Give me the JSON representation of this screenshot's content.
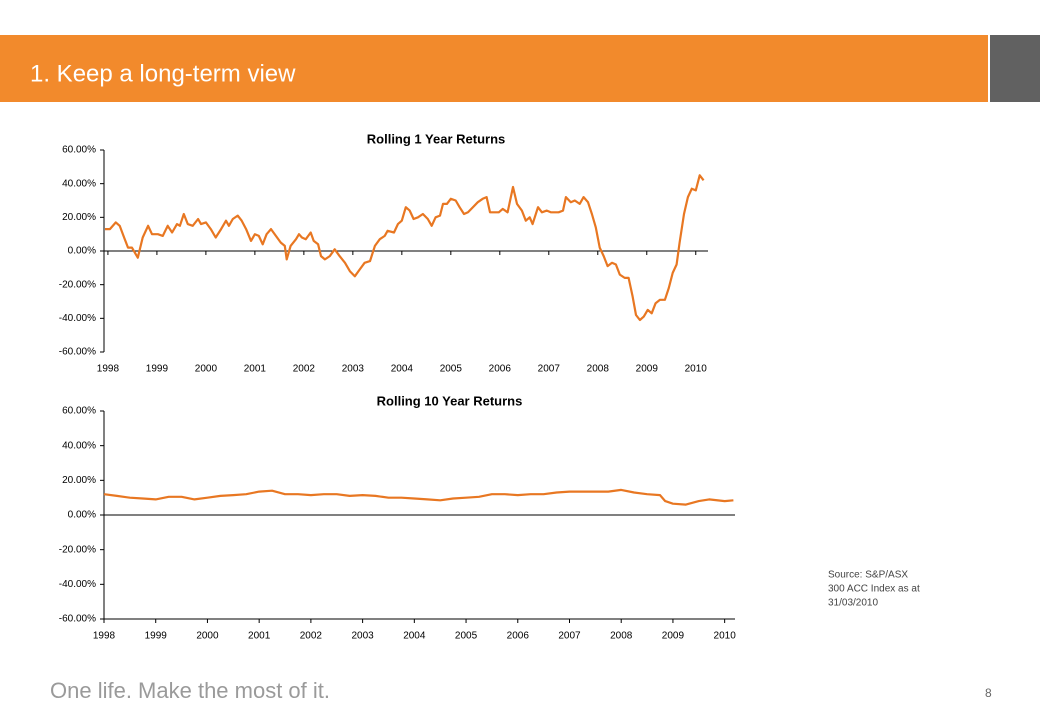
{
  "header": {
    "title": "1. Keep a long-term view"
  },
  "source": [
    "Source: S&P/ASX",
    "300 ACC Index as at",
    "31/03/2010"
  ],
  "footer": {
    "slogan": "One life. Make the most of it.",
    "page": "8"
  },
  "chart_data": [
    {
      "type": "line",
      "title": "Rolling 1 Year Returns",
      "color": "#e87722",
      "xlim": [
        1997.92,
        2010.25
      ],
      "ylim": [
        -60,
        60
      ],
      "xticks": [
        1998,
        1999,
        2000,
        2001,
        2002,
        2003,
        2004,
        2005,
        2006,
        2007,
        2008,
        2009,
        2010
      ],
      "yticks": [
        {
          "value": 60,
          "label": "60.00%"
        },
        {
          "value": 40,
          "label": "40.00%"
        },
        {
          "value": 20,
          "label": "20.00%"
        },
        {
          "value": 0,
          "label": "0.00%"
        },
        {
          "value": -20,
          "label": "-20.00%"
        },
        {
          "value": -40,
          "label": "-40.00%"
        },
        {
          "value": -60,
          "label": "-60.00%"
        }
      ],
      "x": [
        1997.94,
        1998.04,
        1998.16,
        1998.24,
        1998.33,
        1998.41,
        1998.49,
        1998.61,
        1998.71,
        1998.82,
        1998.9,
        1999.02,
        1999.12,
        1999.22,
        1999.31,
        1999.41,
        1999.47,
        1999.55,
        1999.63,
        1999.73,
        1999.84,
        1999.9,
        2000,
        2000.1,
        2000.2,
        2000.31,
        2000.41,
        2000.47,
        2000.55,
        2000.65,
        2000.73,
        2000.82,
        2000.92,
        2001,
        2001.08,
        2001.16,
        2001.24,
        2001.33,
        2001.43,
        2001.53,
        2001.61,
        2001.65,
        2001.73,
        2001.84,
        2001.9,
        2001.96,
        2002.04,
        2002.14,
        2002.2,
        2002.29,
        2002.35,
        2002.43,
        2002.53,
        2002.63,
        2002.73,
        2002.84,
        2002.94,
        2003.04,
        2003.14,
        2003.24,
        2003.35,
        2003.45,
        2003.55,
        2003.65,
        2003.71,
        2003.84,
        2003.92,
        2004,
        2004.08,
        2004.16,
        2004.24,
        2004.33,
        2004.43,
        2004.53,
        2004.61,
        2004.69,
        2004.78,
        2004.84,
        2004.92,
        2005,
        2005.1,
        2005.18,
        2005.27,
        2005.35,
        2005.45,
        2005.55,
        2005.65,
        2005.73,
        2005.8,
        2005.9,
        2005.98,
        2006.06,
        2006.16,
        2006.27,
        2006.35,
        2006.45,
        2006.53,
        2006.61,
        2006.67,
        2006.78,
        2006.86,
        2006.96,
        2007.04,
        2007.12,
        2007.2,
        2007.29,
        2007.35,
        2007.45,
        2007.53,
        2007.63,
        2007.71,
        2007.8,
        2007.88,
        2007.96,
        2008.04,
        2008.12,
        2008.2,
        2008.29,
        2008.37,
        2008.45,
        2008.55,
        2008.63,
        2008.71,
        2008.78,
        2008.86,
        2008.94,
        2009.02,
        2009.1,
        2009.18,
        2009.27,
        2009.37,
        2009.45,
        2009.53,
        2009.61,
        2009.67,
        2009.76,
        2009.84,
        2009.92,
        2010,
        2010.08,
        2010.16
      ],
      "values": [
        13,
        13,
        17,
        15,
        8,
        2,
        2,
        -4,
        8,
        15,
        10,
        10,
        9,
        15,
        11,
        16,
        15,
        22,
        16,
        15,
        19,
        16,
        17,
        13,
        8,
        13,
        18,
        15,
        19,
        21,
        18,
        13,
        6,
        10,
        9,
        4,
        10,
        13,
        9,
        5,
        3,
        -5,
        3,
        7,
        10,
        8,
        7,
        11,
        6,
        4,
        -3,
        -5,
        -3,
        1,
        -3,
        -7,
        -12,
        -15,
        -11,
        -7,
        -6,
        3,
        7,
        9,
        12,
        11,
        16,
        18,
        26,
        24,
        19,
        20,
        22,
        19,
        15,
        20,
        21,
        28,
        28,
        31,
        30,
        26,
        22,
        23,
        26,
        29,
        31,
        32,
        23,
        23,
        23,
        25,
        23,
        38,
        28,
        24,
        18,
        20,
        16,
        26,
        23,
        24,
        23,
        23,
        23,
        24,
        32,
        29,
        30,
        28,
        32,
        29,
        22,
        14,
        2,
        -3,
        -9,
        -7,
        -8,
        -14,
        -16,
        -16,
        -27,
        -38,
        -41,
        -39,
        -35,
        -37,
        -31,
        -29,
        -29,
        -22,
        -13,
        -8,
        5,
        22,
        32,
        37,
        36,
        45,
        42
      ]
    },
    {
      "type": "line",
      "title": "Rolling 10 Year Returns",
      "color": "#e87722",
      "xlim": [
        1998,
        2010.2
      ],
      "ylim": [
        -60,
        60
      ],
      "xticks": [
        1998,
        1999,
        2000,
        2001,
        2002,
        2003,
        2004,
        2005,
        2006,
        2007,
        2008,
        2009,
        2010
      ],
      "yticks": [
        {
          "value": 60,
          "label": "60.00%"
        },
        {
          "value": 40,
          "label": "40.00%"
        },
        {
          "value": 20,
          "label": "20.00%"
        },
        {
          "value": 0,
          "label": "0.00%"
        },
        {
          "value": -20,
          "label": "-20.00%"
        },
        {
          "value": -40,
          "label": "-40.00%"
        },
        {
          "value": -60,
          "label": "-60.00%"
        }
      ],
      "x": [
        1998,
        1998.25,
        1998.5,
        1998.75,
        1999,
        1999.25,
        1999.5,
        1999.75,
        2000,
        2000.25,
        2000.5,
        2000.75,
        2001,
        2001.25,
        2001.5,
        2001.75,
        2002,
        2002.25,
        2002.5,
        2002.75,
        2003,
        2003.25,
        2003.5,
        2003.75,
        2004,
        2004.25,
        2004.5,
        2004.75,
        2005,
        2005.25,
        2005.5,
        2005.75,
        2006,
        2006.25,
        2006.5,
        2006.75,
        2007,
        2007.25,
        2007.5,
        2007.75,
        2008,
        2008.25,
        2008.5,
        2008.75,
        2008.85,
        2009,
        2009.25,
        2009.5,
        2009.7,
        2010,
        2010.17
      ],
      "values": [
        12,
        11,
        10,
        9.5,
        9,
        10.5,
        10.5,
        9,
        10,
        11,
        11.5,
        12,
        13.5,
        14,
        12,
        12,
        11.5,
        12,
        12,
        11,
        11.5,
        11,
        10,
        10,
        9.5,
        9,
        8.5,
        9.5,
        10,
        10.5,
        12,
        12,
        11.5,
        12,
        12,
        13,
        13.5,
        13.5,
        13.5,
        13.5,
        14.5,
        13,
        12,
        11.5,
        8,
        6.5,
        6,
        8,
        9,
        8,
        8.5
      ]
    }
  ]
}
